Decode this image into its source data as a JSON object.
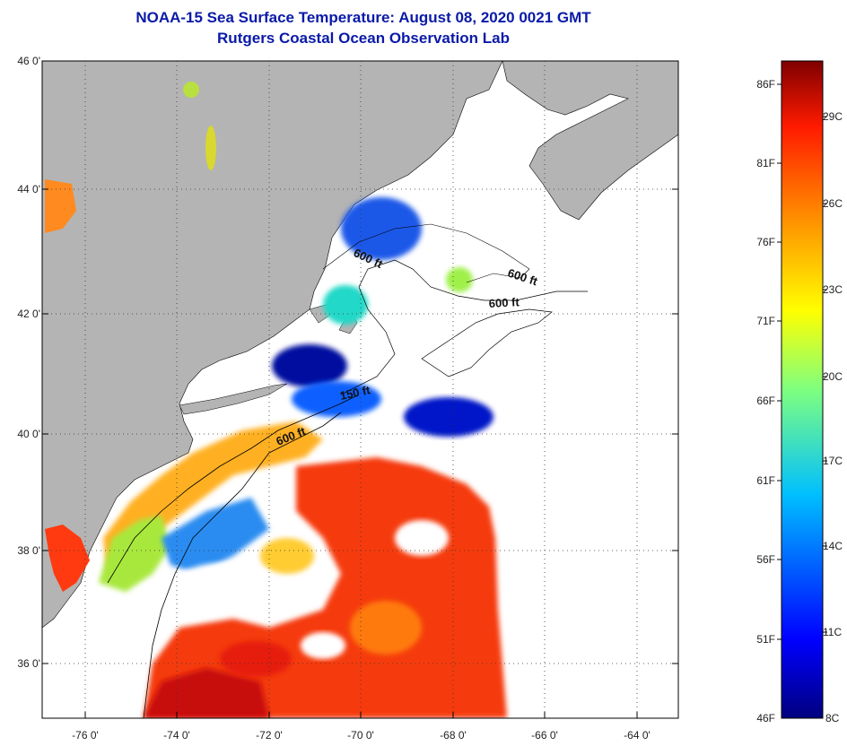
{
  "title_line1": "NOAA-15 Sea Surface Temperature:  August 08, 2020 0021 GMT",
  "title_line2": "Rutgers Coastal Ocean Observation Lab",
  "lat_labels": [
    "46 0'",
    "44 0'",
    "42 0'",
    "40 0'",
    "38 0'",
    "36 0'"
  ],
  "lon_labels": [
    "-76 0'",
    "-74 0'",
    "-72 0'",
    "-70 0'",
    "-68 0'",
    "-66 0'",
    "-64 0'"
  ],
  "contour_labels": [
    "600 ft",
    "600 ft",
    "600 ft",
    "150 ft",
    "600 ft"
  ],
  "colorbar": {
    "fahrenheit": [
      "86F",
      "81F",
      "76F",
      "71F",
      "66F",
      "61F",
      "56F",
      "51F",
      "46F"
    ],
    "celsius": [
      "29C",
      "26C",
      "23C",
      "20C",
      "17C",
      "14C",
      "11C",
      "8C"
    ]
  },
  "colors": {
    "land": "#b4b4b4",
    "title": "#0a1aa8",
    "cloud": "#ffffff"
  }
}
